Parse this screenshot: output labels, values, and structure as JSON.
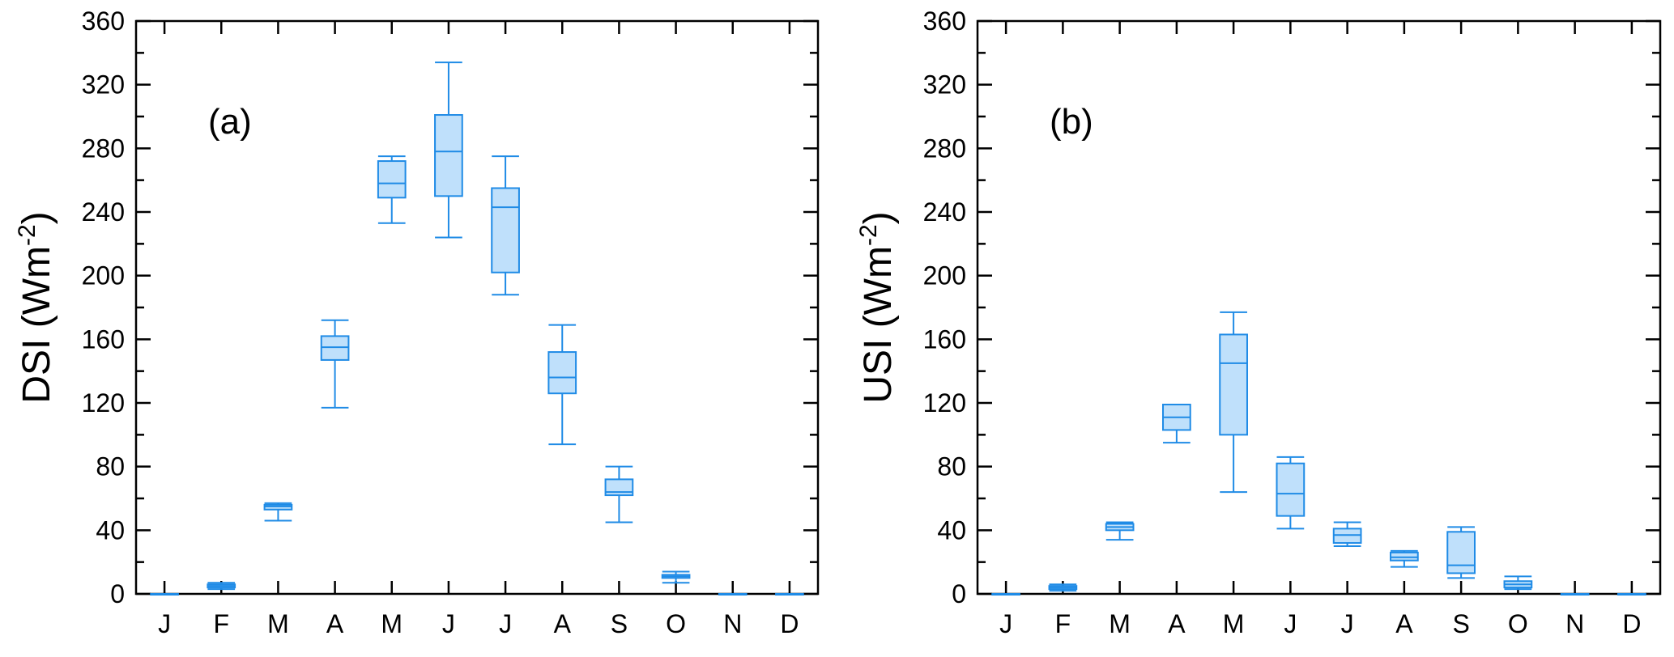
{
  "chart_data": [
    {
      "type": "box",
      "panel_label": "(a)",
      "ylabel_main": "DSI (Wm",
      "ylabel_sup": "-2",
      "ylabel_close": ")",
      "ylim": [
        0,
        360
      ],
      "yticks": [
        0,
        40,
        80,
        120,
        160,
        200,
        240,
        280,
        320,
        360
      ],
      "grid": false,
      "categories": [
        "J",
        "F",
        "M",
        "A",
        "M",
        "J",
        "J",
        "A",
        "S",
        "O",
        "N",
        "D"
      ],
      "boxes": [
        {
          "min": 0,
          "q1": 0,
          "median": 0,
          "q3": 0,
          "max": 0
        },
        {
          "min": 3,
          "q1": 4,
          "median": 5,
          "q3": 6,
          "max": 7
        },
        {
          "min": 46,
          "q1": 53,
          "median": 55,
          "q3": 56,
          "max": 57
        },
        {
          "min": 117,
          "q1": 147,
          "median": 155,
          "q3": 162,
          "max": 172
        },
        {
          "min": 233,
          "q1": 249,
          "median": 258,
          "q3": 272,
          "max": 275
        },
        {
          "min": 224,
          "q1": 250,
          "median": 278,
          "q3": 301,
          "max": 334
        },
        {
          "min": 188,
          "q1": 202,
          "median": 243,
          "q3": 255,
          "max": 275
        },
        {
          "min": 94,
          "q1": 126,
          "median": 136,
          "q3": 152,
          "max": 169
        },
        {
          "min": 45,
          "q1": 62,
          "median": 64,
          "q3": 72,
          "max": 80
        },
        {
          "min": 7,
          "q1": 10,
          "median": 11,
          "q3": 12,
          "max": 14
        },
        {
          "min": 0,
          "q1": 0,
          "median": 0,
          "q3": 0,
          "max": 0
        },
        {
          "min": 0,
          "q1": 0,
          "median": 0,
          "q3": 0,
          "max": 0
        }
      ]
    },
    {
      "type": "box",
      "panel_label": "(b)",
      "ylabel_main": "USI (Wm",
      "ylabel_sup": "-2",
      "ylabel_close": ")",
      "ylim": [
        0,
        360
      ],
      "yticks": [
        0,
        40,
        80,
        120,
        160,
        200,
        240,
        280,
        320,
        360
      ],
      "grid": false,
      "categories": [
        "J",
        "F",
        "M",
        "A",
        "M",
        "J",
        "J",
        "A",
        "S",
        "O",
        "N",
        "D"
      ],
      "boxes": [
        {
          "min": 0,
          "q1": 0,
          "median": 0,
          "q3": 0,
          "max": 0
        },
        {
          "min": 2,
          "q1": 3,
          "median": 4,
          "q3": 5,
          "max": 6
        },
        {
          "min": 34,
          "q1": 40,
          "median": 42,
          "q3": 44,
          "max": 45
        },
        {
          "min": 95,
          "q1": 103,
          "median": 111,
          "q3": 119,
          "max": 119
        },
        {
          "min": 64,
          "q1": 100,
          "median": 145,
          "q3": 163,
          "max": 177
        },
        {
          "min": 41,
          "q1": 49,
          "median": 63,
          "q3": 82,
          "max": 86
        },
        {
          "min": 30,
          "q1": 32,
          "median": 37,
          "q3": 41,
          "max": 45
        },
        {
          "min": 17,
          "q1": 21,
          "median": 23,
          "q3": 26,
          "max": 27
        },
        {
          "min": 10,
          "q1": 13,
          "median": 18,
          "q3": 39,
          "max": 42
        },
        {
          "min": 3,
          "q1": 4,
          "median": 6,
          "q3": 8,
          "max": 11
        },
        {
          "min": 0,
          "q1": 0,
          "median": 0,
          "q3": 0,
          "max": 0
        },
        {
          "min": 0,
          "q1": 0,
          "median": 0,
          "q3": 0,
          "max": 0
        }
      ]
    }
  ],
  "colors": {
    "box_stroke": "#1f8be6",
    "box_fill": "#bfe0fb",
    "axis": "#000000"
  }
}
